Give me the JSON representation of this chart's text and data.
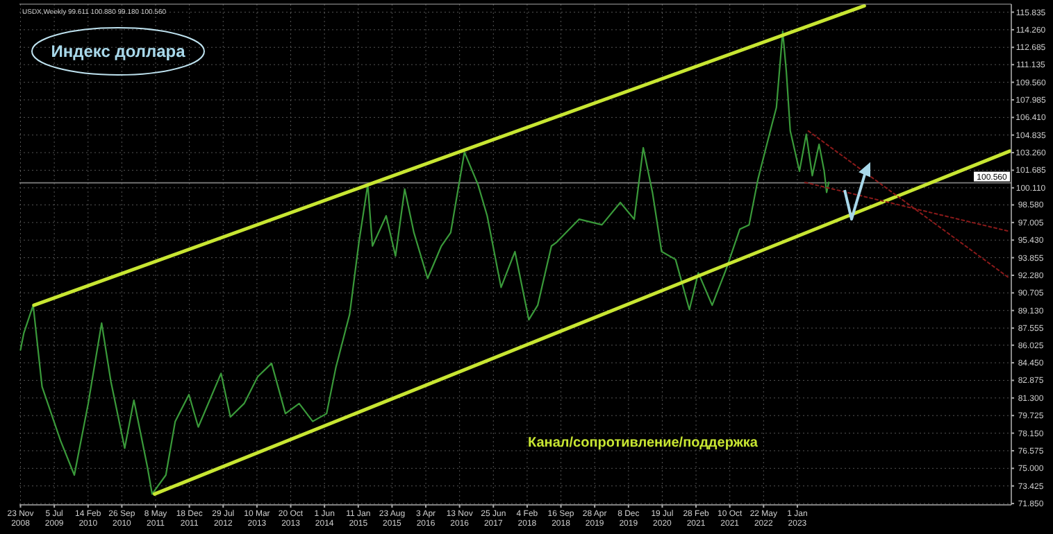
{
  "chart_data": {
    "type": "line",
    "title": "Индекс доллара",
    "subtitle": "USDX,Weekly  99.611 100.880 99.180 100.560",
    "annotations": [
      "Канал/сопротивление/поддержка"
    ],
    "xlim": [
      "2008-11-16",
      "2026-11-20"
    ],
    "ylim": [
      71.73,
      116.55
    ],
    "xticks": [
      {
        "value": "2008-11-23",
        "label": "23 Nov 2008"
      },
      {
        "value": "2009-07-05",
        "label": "5 Jul 2009"
      },
      {
        "value": "2010-02-14",
        "label": "14 Feb 2010"
      },
      {
        "value": "2010-09-26",
        "label": "26 Sep 2010"
      },
      {
        "value": "2011-05-08",
        "label": "8 May 2011"
      },
      {
        "value": "2011-12-18",
        "label": "18 Dec 2011"
      },
      {
        "value": "2012-07-29",
        "label": "29 Jul 2012"
      },
      {
        "value": "2013-03-10",
        "label": "10 Mar 2013"
      },
      {
        "value": "2013-10-20",
        "label": "20 Oct 2013"
      },
      {
        "value": "2014-06-01",
        "label": "1 Jun 2014"
      },
      {
        "value": "2015-01-11",
        "label": "11 Jan 2015"
      },
      {
        "value": "2015-08-23",
        "label": "23 Aug 2015"
      },
      {
        "value": "2016-04-03",
        "label": "3 Apr 2016"
      },
      {
        "value": "2016-11-13",
        "label": "13 Nov 2016"
      },
      {
        "value": "2017-06-25",
        "label": "25 Jun 2017"
      },
      {
        "value": "2018-02-04",
        "label": "4 Feb 2018"
      },
      {
        "value": "2018-09-16",
        "label": "16 Sep 2018"
      },
      {
        "value": "2019-04-28",
        "label": "28 Apr 2019"
      },
      {
        "value": "2019-12-08",
        "label": "8 Dec 2019"
      },
      {
        "value": "2020-07-19",
        "label": "19 Jul 2020"
      },
      {
        "value": "2021-02-28",
        "label": "28 Feb 2021"
      },
      {
        "value": "2021-10-10",
        "label": "10 Oct 2021"
      },
      {
        "value": "2022-05-22",
        "label": "22 May 2022"
      },
      {
        "value": "2023-01-01",
        "label": "1 Jan 2023"
      }
    ],
    "yticks": [
      {
        "value": 115.835,
        "label": "115.835"
      },
      {
        "value": 114.26,
        "label": "114.260"
      },
      {
        "value": 112.685,
        "label": "112.685"
      },
      {
        "value": 111.135,
        "label": "111.135"
      },
      {
        "value": 109.56,
        "label": "109.560"
      },
      {
        "value": 107.985,
        "label": "107.985"
      },
      {
        "value": 106.41,
        "label": "106.410"
      },
      {
        "value": 104.835,
        "label": "104.835"
      },
      {
        "value": 103.26,
        "label": "103.260"
      },
      {
        "value": 101.685,
        "label": "101.685"
      },
      {
        "value": 100.11,
        "label": "100.110"
      },
      {
        "value": 98.58,
        "label": "98.580"
      },
      {
        "value": 97.005,
        "label": "97.005"
      },
      {
        "value": 95.43,
        "label": "95.430"
      },
      {
        "value": 93.855,
        "label": "93.855"
      },
      {
        "value": 92.28,
        "label": "92.280"
      },
      {
        "value": 90.705,
        "label": "90.705"
      },
      {
        "value": 89.13,
        "label": "89.130"
      },
      {
        "value": 87.555,
        "label": "87.555"
      },
      {
        "value": 86.025,
        "label": "86.025"
      },
      {
        "value": 84.45,
        "label": "84.450"
      },
      {
        "value": 82.875,
        "label": "82.875"
      },
      {
        "value": 81.3,
        "label": "81.300"
      },
      {
        "value": 79.725,
        "label": "79.725"
      },
      {
        "value": 78.15,
        "label": "78.150"
      },
      {
        "value": 76.575,
        "label": "76.575"
      },
      {
        "value": 75,
        "label": "75.000"
      },
      {
        "value": 73.425,
        "label": "73.425"
      },
      {
        "value": 71.85,
        "label": "71.850"
      }
    ],
    "grid": true,
    "ref_lines": [
      {
        "axis": "y",
        "value": 100.56,
        "label": "100.560",
        "color": "#808080"
      }
    ],
    "series": [
      {
        "color": "#3a9a3a",
        "line_style": "solid",
        "x": [
          "2008-11-23",
          "2008-12",
          "2009-02",
          "2009-04",
          "2009-08",
          "2009-11",
          "2010-02",
          "2010-05",
          "2010-07",
          "2010-10",
          "2010-12",
          "2011-03",
          "2011-04",
          "2011-07",
          "2011-09",
          "2011-12",
          "2012-02",
          "2012-07",
          "2012-09",
          "2012-12",
          "2013-03",
          "2013-06",
          "2013-09",
          "2013-12",
          "2014-03",
          "2014-06",
          "2014-08",
          "2014-11",
          "2015-01",
          "2015-03",
          "2015-04",
          "2015-07",
          "2015-09",
          "2015-11",
          "2016-01",
          "2016-04",
          "2016-07",
          "2016-09",
          "2016-12",
          "2017-03",
          "2017-05",
          "2017-08",
          "2017-11",
          "2018-02",
          "2018-04",
          "2018-07",
          "2018-08",
          "2019-01",
          "2019-06",
          "2019-10",
          "2020-01",
          "2020-03",
          "2020-05",
          "2020-07",
          "2020-10",
          "2021-01",
          "2021-03",
          "2021-06",
          "2021-09",
          "2021-12",
          "2022-02",
          "2022-04",
          "2022-07",
          "2022-08",
          "2022-09-26",
          "2022-10-20",
          "2022-11-15",
          "2023-01-15",
          "2023-03-01",
          "2023-04-10",
          "2023-05-25",
          "2023-06-28",
          "2023-07-14",
          "2023-07-28"
        ],
        "values": [
          85.6,
          87.1,
          89.6,
          82.3,
          77.5,
          74.4,
          80.8,
          88.0,
          82.8,
          76.8,
          81.1,
          75.1,
          72.7,
          74.4,
          79.2,
          81.6,
          78.7,
          83.5,
          79.6,
          80.8,
          83.2,
          84.4,
          79.9,
          80.8,
          79.2,
          79.9,
          84.0,
          88.8,
          95.2,
          100.4,
          94.9,
          97.6,
          94.0,
          100.0,
          96.1,
          92.0,
          94.9,
          96.1,
          103.3,
          100.4,
          97.6,
          91.2,
          94.4,
          88.3,
          89.6,
          94.9,
          95.2,
          97.3,
          96.8,
          98.8,
          97.3,
          103.7,
          99.7,
          94.4,
          93.7,
          89.2,
          92.5,
          89.6,
          92.8,
          96.4,
          96.8,
          100.9,
          105.7,
          107.3,
          114.1,
          110.5,
          105.2,
          101.6,
          104.9,
          101.2,
          104.0,
          101.6,
          99.7,
          100.6
        ]
      },
      {
        "type": "line",
        "color": "#c8e632",
        "line_style": "solid",
        "x": [
          "2009-02-20",
          "2024-03-20"
        ],
        "values": [
          89.6,
          116.4
        ]
      },
      {
        "type": "line",
        "color": "#c8e632",
        "line_style": "solid",
        "x": [
          "2011-05-01",
          "2026-11-10"
        ],
        "values": [
          72.7,
          103.4
        ]
      },
      {
        "type": "line",
        "color": "#8b1a1a",
        "line_style": "dotted",
        "x": [
          "2023-03-15",
          "2026-11-10"
        ],
        "values": [
          105.2,
          92.0
        ]
      },
      {
        "type": "line",
        "color": "#8b1a1a",
        "line_style": "dotted",
        "x": [
          "2023-02-20",
          "2026-11-10"
        ],
        "values": [
          100.6,
          96.2
        ]
      }
    ]
  }
}
